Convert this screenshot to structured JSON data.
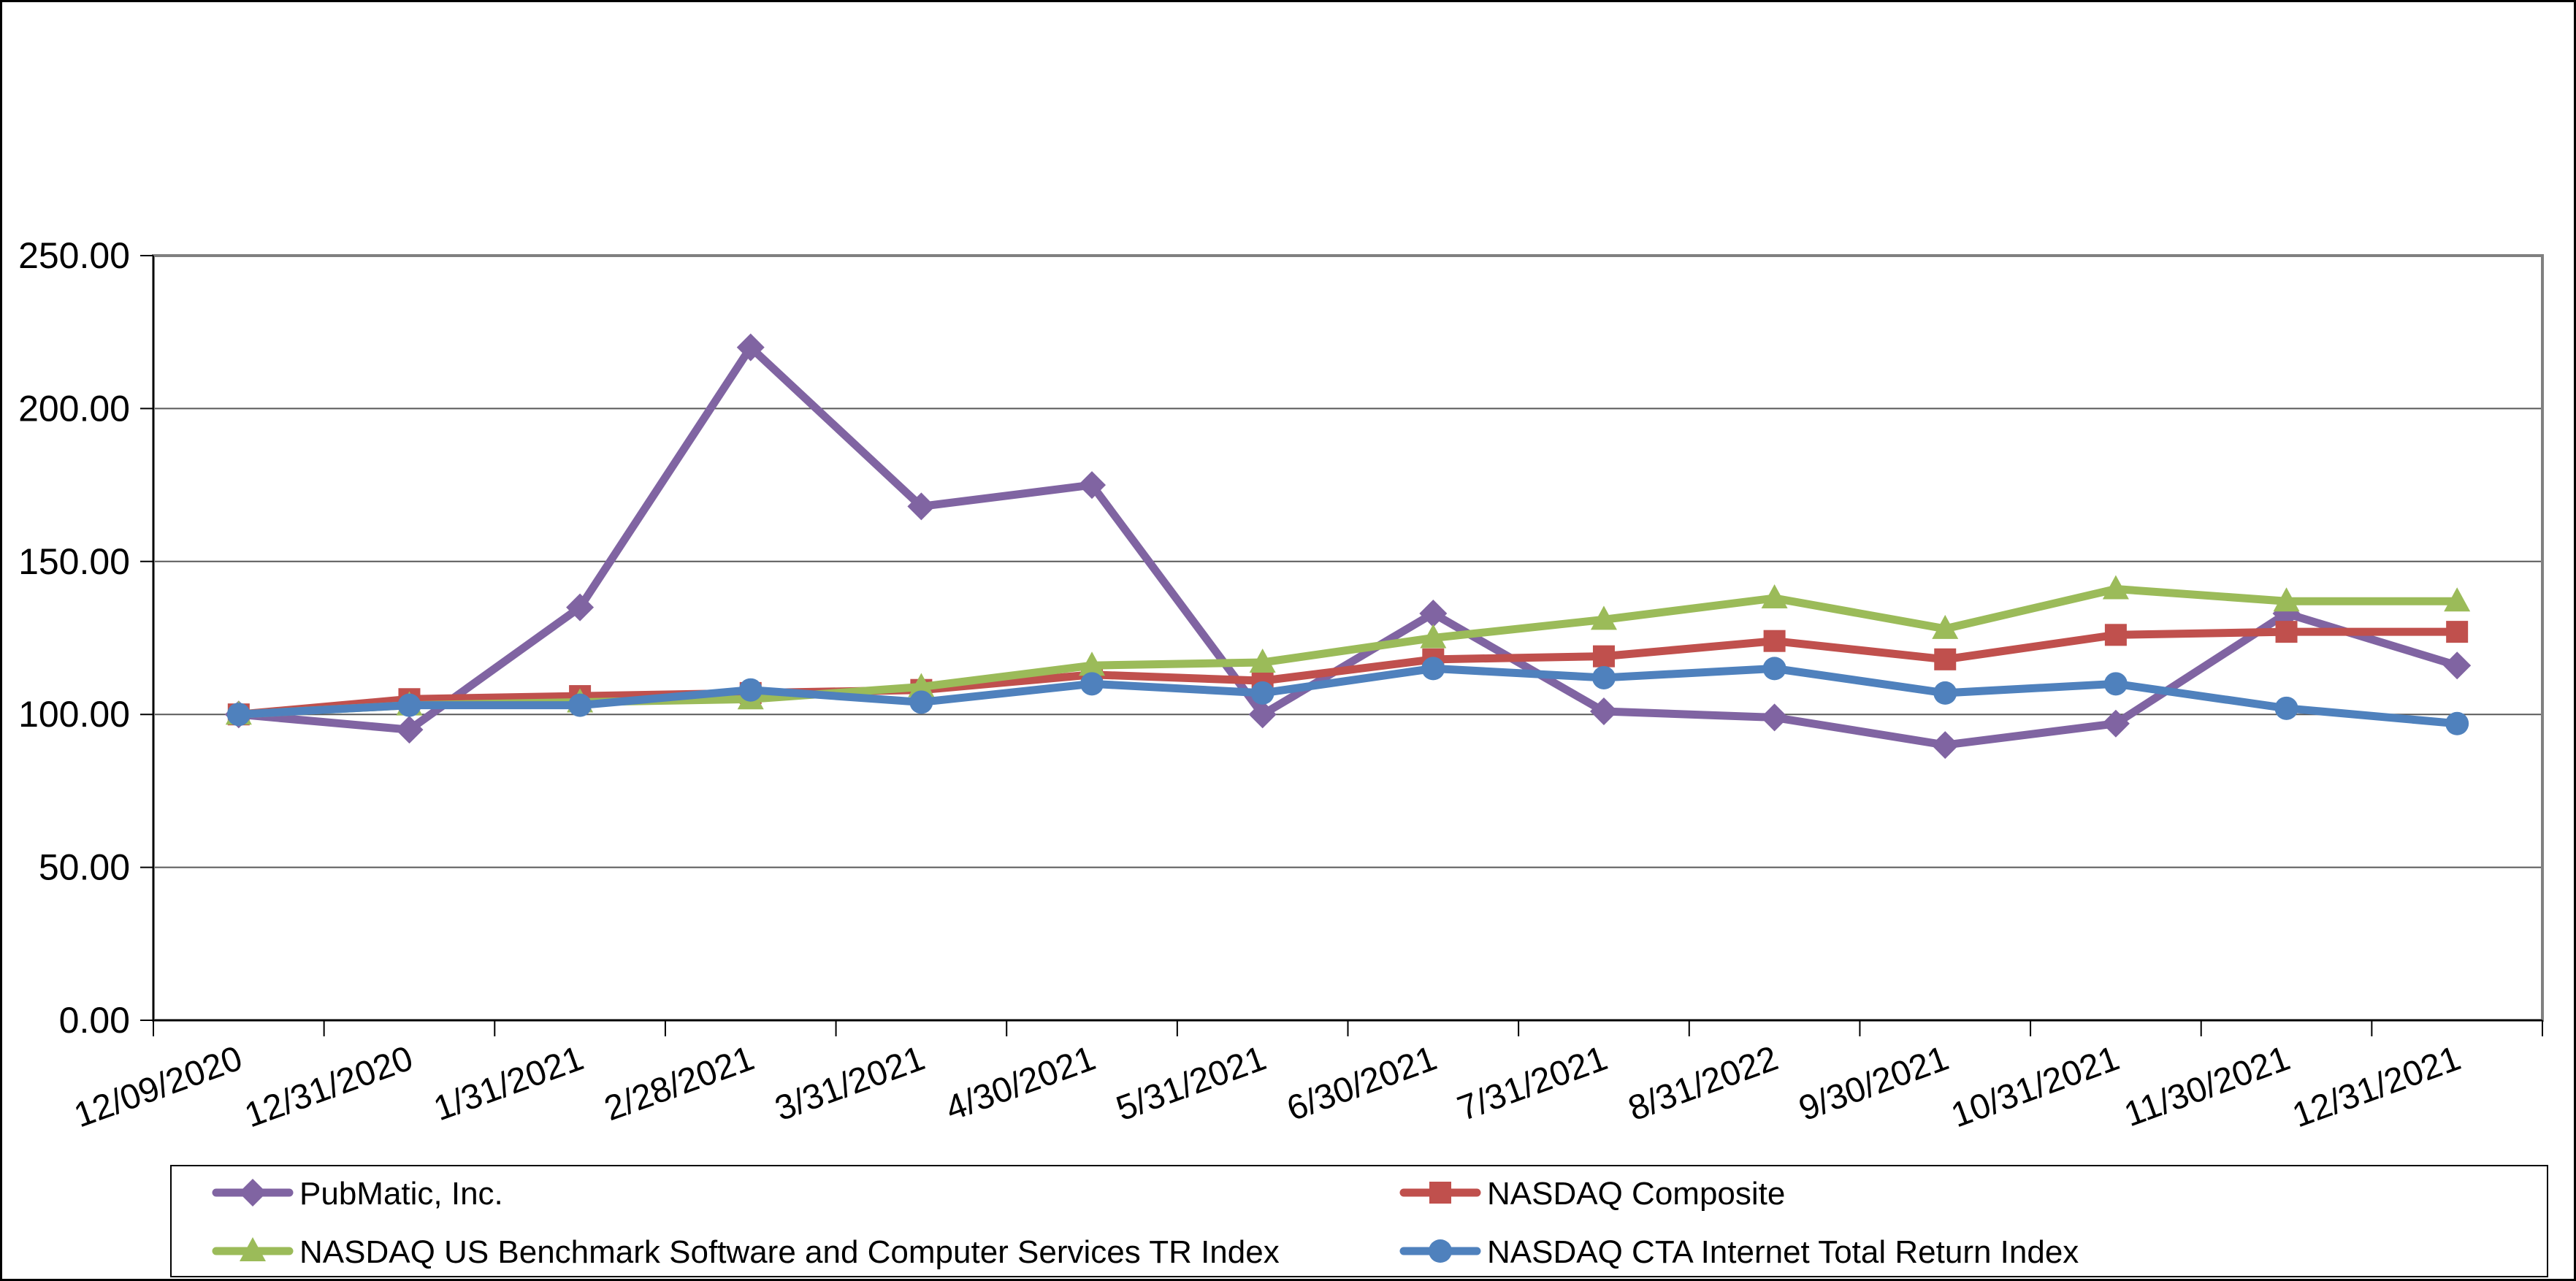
{
  "chart_data": {
    "type": "line",
    "title": "",
    "xlabel": "",
    "ylabel": "",
    "categories": [
      "12/09/2020",
      "12/31/2020",
      "1/31/2021",
      "2/28/2021",
      "3/31/2021",
      "4/30/2021",
      "5/31/2021",
      "6/30/2021",
      "7/31/2021",
      "8/31/2022",
      "9/30/2021",
      "10/31/2021",
      "11/30/2021",
      "12/31/2021"
    ],
    "series": [
      {
        "name": "PubMatic, Inc.",
        "color": "#8064A2",
        "marker": "diamond",
        "values": [
          100,
          95,
          135,
          220,
          168,
          175,
          100,
          133,
          101,
          99,
          90,
          97,
          133,
          116
        ]
      },
      {
        "name": "NASDAQ Composite",
        "color": "#C0504D",
        "marker": "square",
        "values": [
          100,
          105,
          106,
          107,
          108,
          113,
          111,
          118,
          119,
          124,
          118,
          126,
          127,
          127
        ]
      },
      {
        "name": "NASDAQ US Benchmark Software and Computer Services TR Index",
        "color": "#9BBB59",
        "marker": "triangle",
        "values": [
          100,
          103,
          104,
          105,
          109,
          116,
          117,
          125,
          131,
          138,
          128,
          141,
          137,
          137
        ]
      },
      {
        "name": "NASDAQ CTA Internet Total Return Index",
        "color": "#4F81BD",
        "marker": "circle",
        "values": [
          100,
          103,
          103,
          108,
          104,
          110,
          107,
          115,
          112,
          115,
          107,
          110,
          102,
          97
        ]
      }
    ],
    "y_axis": {
      "min": 0,
      "max": 250,
      "step": 50,
      "tick_labels": [
        "0.00",
        "50.00",
        "100.00",
        "150.00",
        "200.00",
        "250.00"
      ]
    },
    "grid": true,
    "gridline_color": "#595959",
    "plot_border_color": "#808080",
    "axis_color": "#000000",
    "legend_position": "bottom",
    "legend_rows": [
      [
        "PubMatic, Inc.",
        "NASDAQ Composite"
      ],
      [
        "NASDAQ US Benchmark Software and Computer Services TR Index",
        "NASDAQ CTA Internet Total Return Index"
      ]
    ]
  }
}
